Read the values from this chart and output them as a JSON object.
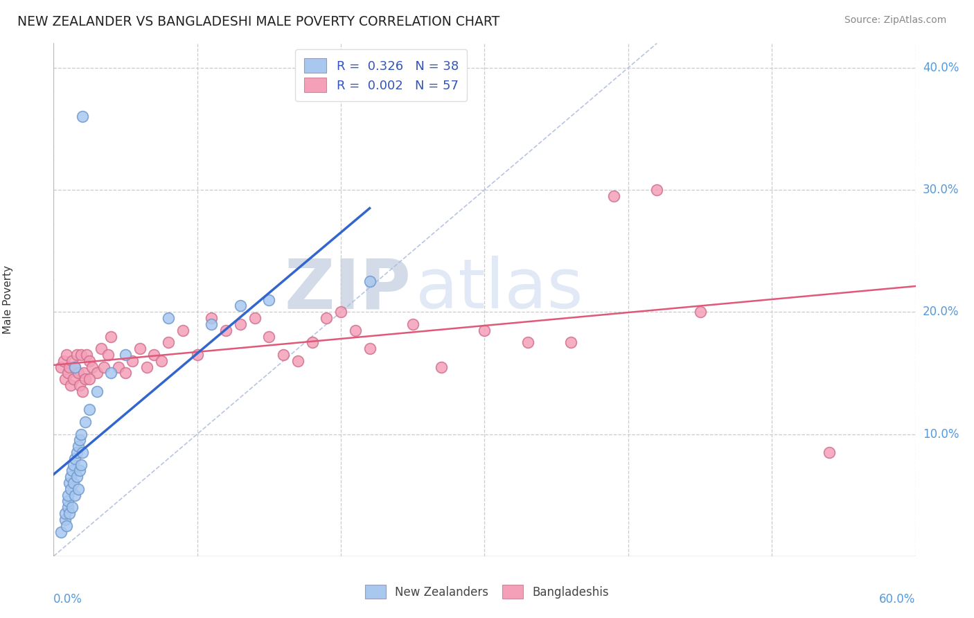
{
  "title": "NEW ZEALANDER VS BANGLADESHI MALE POVERTY CORRELATION CHART",
  "source": "Source: ZipAtlas.com",
  "ylabel": "Male Poverty",
  "xmin": 0.0,
  "xmax": 0.6,
  "ymin": 0.0,
  "ymax": 0.42,
  "color_nz": "#A8C8F0",
  "color_bd": "#F4A0B8",
  "color_nz_line": "#3366CC",
  "color_bd_line": "#E05878",
  "color_diagonal": "#AABBDD",
  "watermark_zip": "ZIP",
  "watermark_atlas": "atlas",
  "nz_x": [
    0.005,
    0.008,
    0.008,
    0.009,
    0.01,
    0.01,
    0.01,
    0.011,
    0.011,
    0.012,
    0.012,
    0.013,
    0.013,
    0.014,
    0.014,
    0.015,
    0.015,
    0.016,
    0.016,
    0.017,
    0.017,
    0.018,
    0.018,
    0.019,
    0.019,
    0.02,
    0.022,
    0.025,
    0.03,
    0.04,
    0.05,
    0.08,
    0.11,
    0.13,
    0.15,
    0.22,
    0.015,
    0.02
  ],
  "nz_y": [
    0.02,
    0.03,
    0.035,
    0.025,
    0.04,
    0.045,
    0.05,
    0.035,
    0.06,
    0.055,
    0.065,
    0.04,
    0.07,
    0.06,
    0.075,
    0.05,
    0.08,
    0.065,
    0.085,
    0.055,
    0.09,
    0.07,
    0.095,
    0.075,
    0.1,
    0.085,
    0.11,
    0.12,
    0.135,
    0.15,
    0.165,
    0.195,
    0.19,
    0.205,
    0.21,
    0.225,
    0.155,
    0.36
  ],
  "bd_x": [
    0.005,
    0.007,
    0.008,
    0.009,
    0.01,
    0.011,
    0.012,
    0.013,
    0.014,
    0.015,
    0.016,
    0.017,
    0.018,
    0.019,
    0.02,
    0.021,
    0.022,
    0.023,
    0.025,
    0.027,
    0.03,
    0.033,
    0.035,
    0.038,
    0.04,
    0.045,
    0.05,
    0.055,
    0.06,
    0.065,
    0.07,
    0.075,
    0.08,
    0.09,
    0.1,
    0.11,
    0.12,
    0.13,
    0.14,
    0.15,
    0.16,
    0.17,
    0.18,
    0.19,
    0.2,
    0.21,
    0.22,
    0.25,
    0.27,
    0.3,
    0.33,
    0.36,
    0.39,
    0.42,
    0.45,
    0.54,
    0.025
  ],
  "bd_y": [
    0.155,
    0.16,
    0.145,
    0.165,
    0.15,
    0.155,
    0.14,
    0.16,
    0.145,
    0.155,
    0.165,
    0.15,
    0.14,
    0.165,
    0.135,
    0.15,
    0.145,
    0.165,
    0.16,
    0.155,
    0.15,
    0.17,
    0.155,
    0.165,
    0.18,
    0.155,
    0.15,
    0.16,
    0.17,
    0.155,
    0.165,
    0.16,
    0.175,
    0.185,
    0.165,
    0.195,
    0.185,
    0.19,
    0.195,
    0.18,
    0.165,
    0.16,
    0.175,
    0.195,
    0.2,
    0.185,
    0.17,
    0.19,
    0.155,
    0.185,
    0.175,
    0.175,
    0.295,
    0.3,
    0.2,
    0.085,
    0.145
  ]
}
